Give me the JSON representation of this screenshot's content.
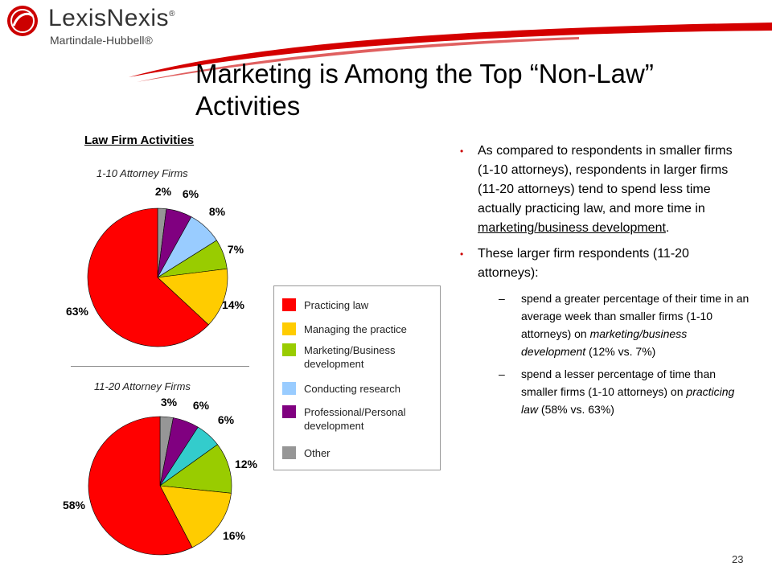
{
  "brand": {
    "logo_name": "LexisNexis",
    "logo_mark": "®",
    "logo_sub": "Martindale-Hubbell®",
    "colors": {
      "red": "#cc0000",
      "swoosh": "#d40000"
    }
  },
  "slide": {
    "title": "Marketing is Among the Top “Non-Law” Activities",
    "page_number": "23"
  },
  "chart_heading": "Law Firm Activities",
  "legend": [
    {
      "label": "Practicing law",
      "color": "#ff0000"
    },
    {
      "label": "Managing the practice",
      "color": "#ffcc00"
    },
    {
      "label": "Marketing/Business development",
      "color": "#99cc00"
    },
    {
      "label": "Conducting research",
      "color": "#99ccff"
    },
    {
      "label": "Professional/Personal development",
      "color": "#800080"
    },
    {
      "label": "Other",
      "color": "#969696"
    }
  ],
  "chart_data": [
    {
      "type": "pie",
      "title": "1-10 Attorney Firms",
      "categories": [
        "Practicing law",
        "Managing the practice",
        "Marketing/Business development",
        "Conducting research",
        "Professional/Personal development",
        "Other"
      ],
      "values": [
        63,
        14,
        7,
        8,
        6,
        2
      ],
      "labels": [
        "63%",
        "14%",
        "7%",
        "8%",
        "6%",
        "2%"
      ],
      "colors": [
        "#ff0000",
        "#ffcc00",
        "#99cc00",
        "#99ccff",
        "#800080",
        "#969696"
      ]
    },
    {
      "type": "pie",
      "title": "11-20 Attorney Firms",
      "categories": [
        "Practicing law",
        "Managing the practice",
        "Marketing/Business development",
        "Conducting research",
        "Professional/Personal development",
        "Other"
      ],
      "values": [
        58,
        16,
        12,
        6,
        6,
        3
      ],
      "labels": [
        "58%",
        "16%",
        "12%",
        "6%",
        "6%",
        "3%"
      ],
      "colors": [
        "#ff0000",
        "#ffcc00",
        "#99cc00",
        "#33cccc",
        "#800080",
        "#969696"
      ]
    }
  ],
  "bullets": {
    "b1": {
      "text_a": "As compared to respondents in smaller firms (1-10 attorneys), respondents in larger firms (11-20 attorneys) tend to spend less time actually practicing law, and more time in ",
      "text_u": "marketing/business development",
      "text_b": "."
    },
    "b2": {
      "text": "These larger firm respondents (11-20 attorneys):"
    },
    "s1": {
      "text_a": "spend a greater percentage of their time in an average week than smaller firms (1-10 attorneys) on ",
      "text_i": "marketing/business development",
      "text_b": " (12% vs. 7%)"
    },
    "s2": {
      "text_a": "spend a lesser percentage of time than smaller firms (1-10 attorneys) on ",
      "text_i": "practicing law",
      "text_b": " (58% vs. 63%)"
    },
    "dash": "–",
    "dot": "•"
  }
}
